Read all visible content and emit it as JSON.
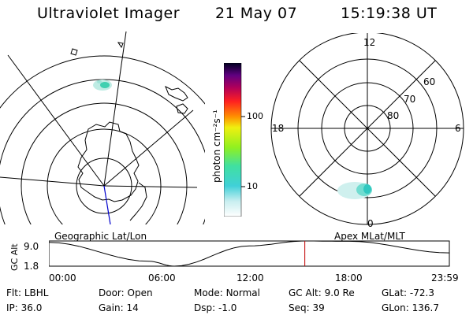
{
  "header": {
    "title": "Ultraviolet Imager",
    "date": "21 May 07",
    "time": "15:19:38 UT"
  },
  "colorbar": {
    "unit_label": "photon cm⁻²s⁻¹",
    "ticks": [
      "100",
      "10"
    ]
  },
  "geo_map": {
    "label": "Geographic Lat/Lon"
  },
  "polar_plot": {
    "label": "Apex MLat/MLT",
    "mlt_labels": {
      "top": "12",
      "right": "6",
      "bottom": "0",
      "left": "18"
    },
    "lat_labels": [
      "60",
      "70",
      "80"
    ]
  },
  "timeline": {
    "y_label": "GC Alt",
    "y_ticks": [
      "9.0",
      "1.8"
    ],
    "x_ticks": [
      "00:00",
      "06:00",
      "12:00",
      "18:00",
      "23:59"
    ],
    "marker_time": "15:19:38",
    "marker_color": "#c00000",
    "chart_data": {
      "type": "line",
      "x": [
        "00:00",
        "06:00",
        "07:30",
        "12:00",
        "15:20",
        "18:00",
        "23:59"
      ],
      "values": [
        8.6,
        3.2,
        1.8,
        7.6,
        9.0,
        8.9,
        5.6
      ],
      "ylim": [
        1.8,
        9.0
      ],
      "xlabel": "",
      "ylabel": "GC Alt"
    }
  },
  "info_grid": [
    {
      "label": "Flt:",
      "value": "LBHL"
    },
    {
      "label": "Door:",
      "value": "Open"
    },
    {
      "label": "Mode:",
      "value": "Normal"
    },
    {
      "label": "GC Alt:",
      "value": "9.0 Re"
    },
    {
      "label": "GLat:",
      "value": "-72.3"
    },
    {
      "label": "IP:",
      "value": "36.0"
    },
    {
      "label": "Gain:",
      "value": "14"
    },
    {
      "label": "Dsp:",
      "value": "-1.0"
    },
    {
      "label": "Seq:",
      "value": "39"
    },
    {
      "label": "GLon:",
      "value": "136.7"
    }
  ],
  "colors": {
    "axis": "#000000",
    "track_line": "#0000cc",
    "aurora": "#40d0b0"
  }
}
